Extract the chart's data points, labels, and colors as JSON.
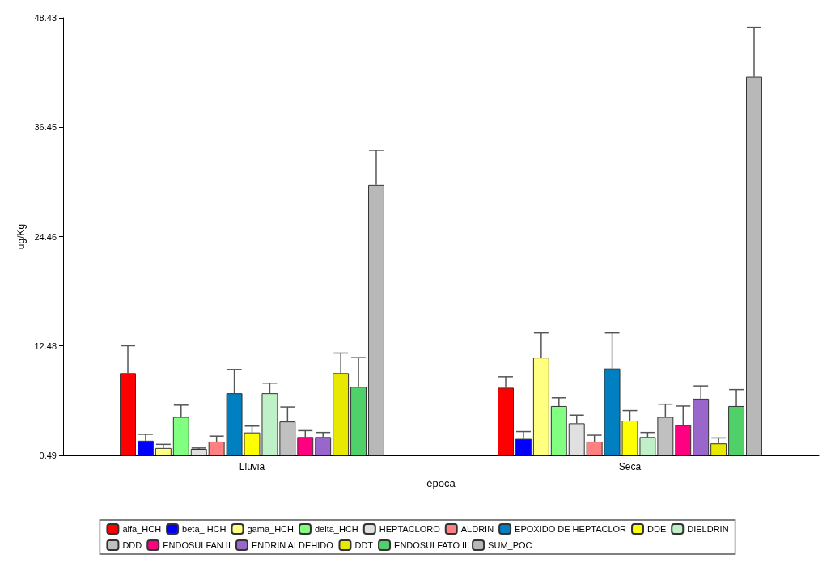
{
  "chart_data": {
    "type": "bar",
    "xlabel": "época",
    "ylabel": "ug/Kg",
    "categories": [
      "Lluvia",
      "Seca"
    ],
    "ylim": [
      0.49,
      48.43
    ],
    "yticks": [
      0.49,
      12.48,
      24.46,
      36.45,
      48.43
    ],
    "grid": false,
    "legend": "bottom",
    "series": [
      {
        "name": "alfa_HCH",
        "color": "#ff0000",
        "values": [
          9.5,
          7.9
        ],
        "errors": [
          [
            9.5,
            12.5
          ],
          [
            7.9,
            9.1
          ]
        ]
      },
      {
        "name": "beta_ HCH",
        "color": "#0000ff",
        "values": [
          2.1,
          2.3
        ],
        "errors": [
          [
            2.1,
            2.8
          ],
          [
            2.3,
            3.1
          ]
        ]
      },
      {
        "name": "gama_HCH",
        "color": "#ffff80",
        "values": [
          1.3,
          11.2
        ],
        "errors": [
          [
            1.3,
            1.7
          ],
          [
            11.2,
            13.9
          ]
        ]
      },
      {
        "name": "delta_HCH",
        "color": "#80ff80",
        "values": [
          4.7,
          5.9
        ],
        "errors": [
          [
            4.7,
            6.0
          ],
          [
            5.9,
            6.8
          ]
        ]
      },
      {
        "name": "HEPTACLORO",
        "color": "#e0e0e0",
        "values": [
          1.2,
          4.0
        ],
        "errors": [
          [
            1.2,
            1.3
          ],
          [
            4.0,
            4.9
          ]
        ]
      },
      {
        "name": "ALDRIN",
        "color": "#ff8080",
        "values": [
          2.0,
          2.0
        ],
        "errors": [
          [
            2.0,
            2.6
          ],
          [
            2.0,
            2.7
          ]
        ]
      },
      {
        "name": "EPOXIDO DE HEPTACLOR",
        "color": "#0080c0",
        "values": [
          7.3,
          10.0
        ],
        "errors": [
          [
            7.3,
            9.9
          ],
          [
            10.0,
            13.9
          ]
        ]
      },
      {
        "name": "DDE",
        "color": "#ffff00",
        "values": [
          3.0,
          4.3
        ],
        "errors": [
          [
            3.0,
            3.7
          ],
          [
            4.3,
            5.4
          ]
        ]
      },
      {
        "name": "DIELDRIN",
        "color": "#c0f0c8",
        "values": [
          7.3,
          2.5
        ],
        "errors": [
          [
            7.3,
            8.4
          ],
          [
            2.5,
            3.0
          ]
        ]
      },
      {
        "name": "DDD",
        "color": "#c0c0c0",
        "values": [
          4.2,
          4.7
        ],
        "errors": [
          [
            4.2,
            5.8
          ],
          [
            4.7,
            6.1
          ]
        ]
      },
      {
        "name": "ENDOSULFAN II",
        "color": "#ff0080",
        "values": [
          2.5,
          3.8
        ],
        "errors": [
          [
            2.5,
            3.2
          ],
          [
            3.8,
            5.9
          ]
        ]
      },
      {
        "name": "ENDRIN ALDEHIDO",
        "color": "#9966cc",
        "values": [
          2.5,
          6.7
        ],
        "errors": [
          [
            2.5,
            3.0
          ],
          [
            6.7,
            8.1
          ]
        ]
      },
      {
        "name": "DDT",
        "color": "#e8e800",
        "values": [
          9.5,
          1.8
        ],
        "errors": [
          [
            9.5,
            11.7
          ],
          [
            1.8,
            2.4
          ]
        ]
      },
      {
        "name": "ENDOSULFATO II",
        "color": "#50d068",
        "values": [
          8.0,
          5.9
        ],
        "errors": [
          [
            8.0,
            11.2
          ],
          [
            5.9,
            7.7
          ]
        ]
      },
      {
        "name": "SUM_POC",
        "color": "#b8b8b8",
        "values": [
          30.1,
          42.0
        ],
        "errors": [
          [
            30.1,
            33.9
          ],
          [
            42.0,
            47.4
          ]
        ]
      }
    ]
  }
}
